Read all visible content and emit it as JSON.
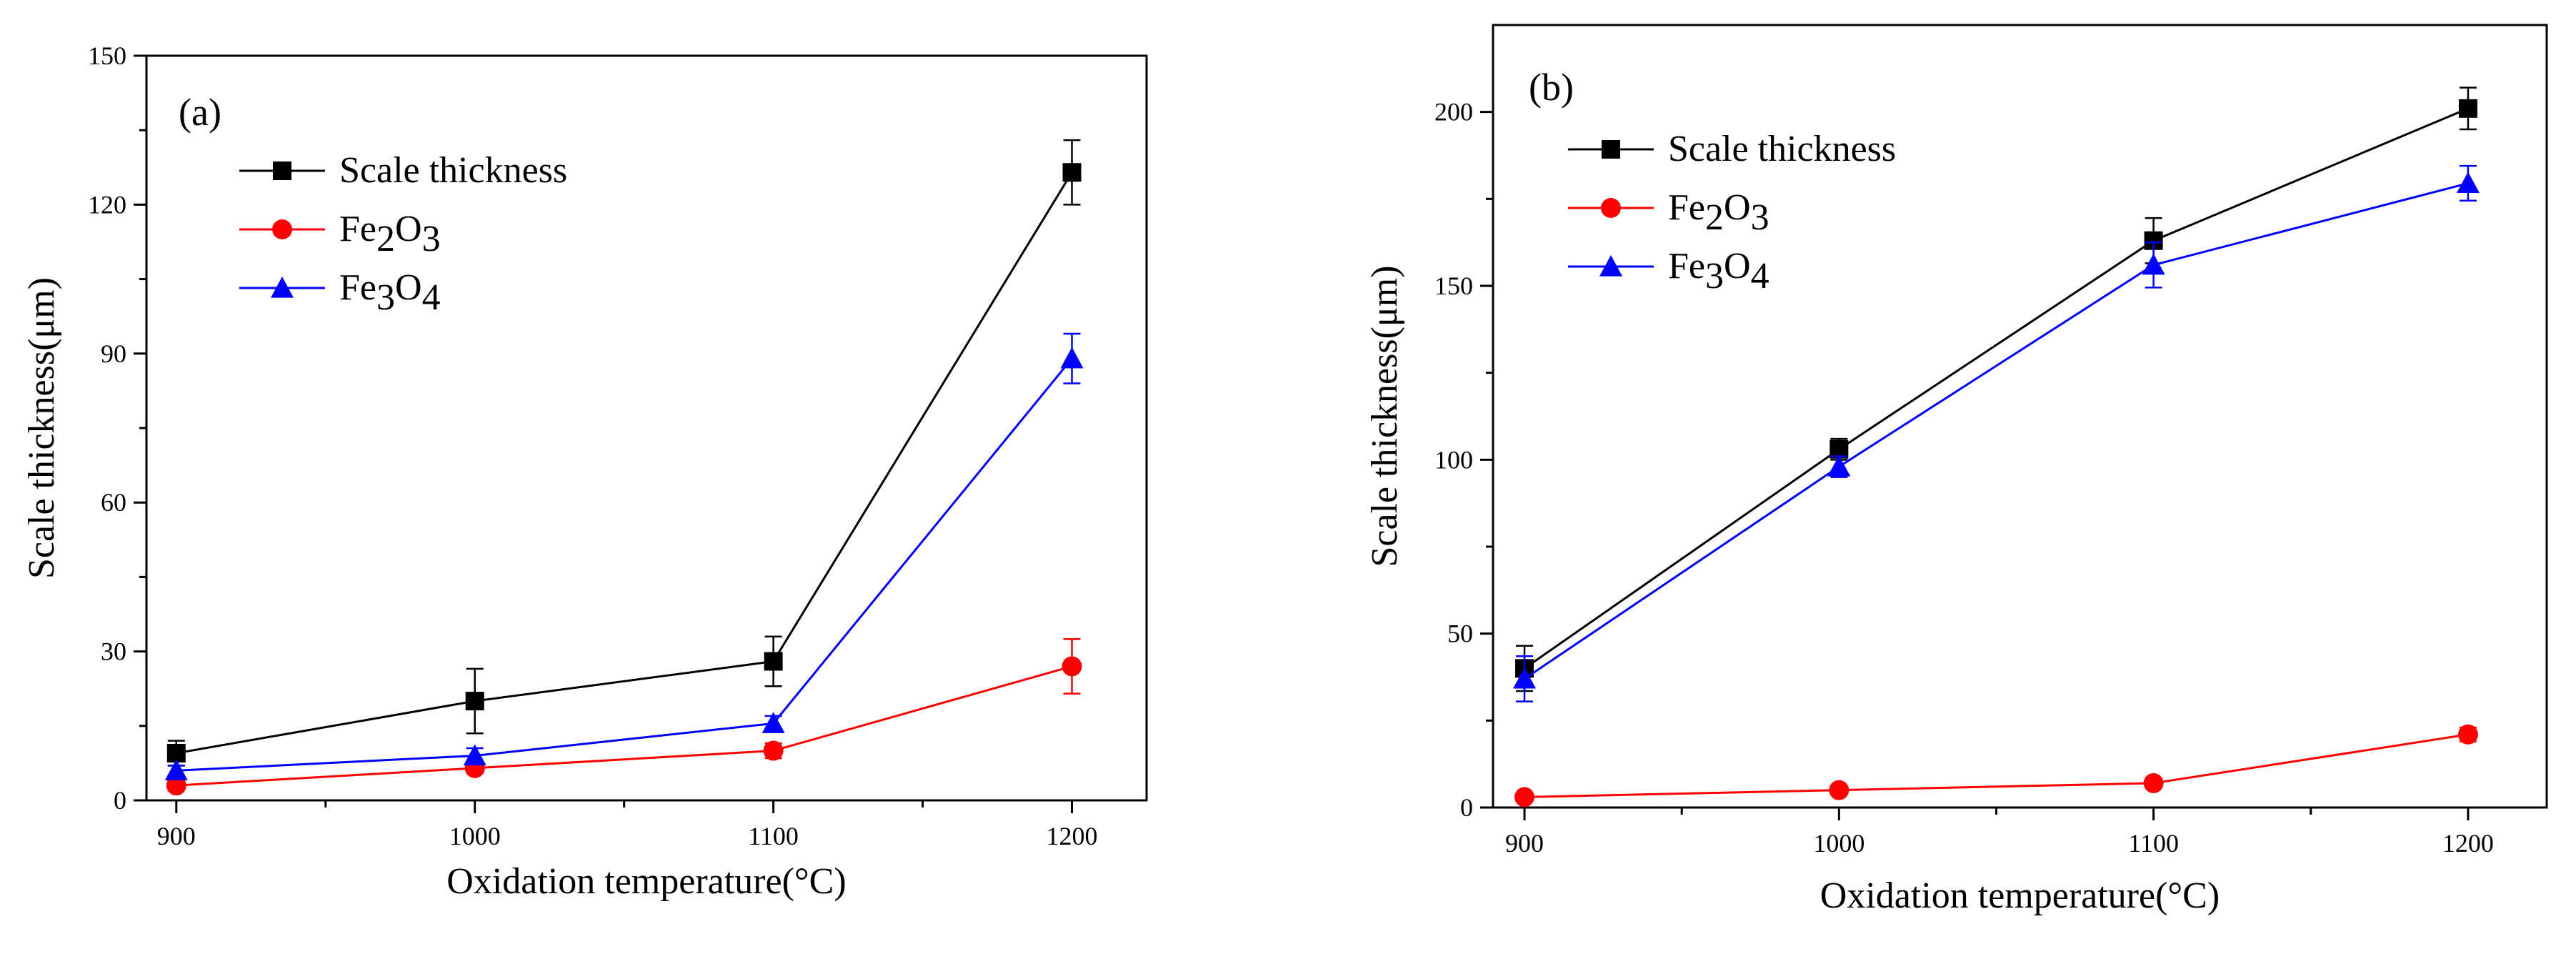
{
  "chart_data": [
    {
      "type": "line",
      "panel_label": "(a)",
      "title": "",
      "xlabel": "Oxidation temperature(°C)",
      "ylabel": "Scale thickness(μm)",
      "x": [
        900,
        1000,
        1100,
        1200
      ],
      "xticks": [
        "900",
        "1000",
        "1100",
        "1200"
      ],
      "yticks": [
        "0",
        "30",
        "60",
        "90",
        "120",
        "150"
      ],
      "xlim": [
        890,
        1225
      ],
      "ylim": [
        0,
        150
      ],
      "legend_position": "upper-left",
      "series": [
        {
          "name": "Scale thickness",
          "legend_base": "Scale thickness",
          "color": "#000000",
          "marker": "square",
          "values": [
            9.5,
            20,
            28,
            126.5
          ],
          "errors": [
            2.5,
            6.5,
            5,
            6.5
          ]
        },
        {
          "name": "Fe2O3",
          "legend_base": "Fe",
          "legend_sub1": "2",
          "legend_mid": "O",
          "legend_sub2": "3",
          "color": "#ff0000",
          "marker": "circle",
          "values": [
            3,
            6.5,
            10,
            27
          ],
          "errors": [
            1,
            1,
            1.5,
            5.5
          ]
        },
        {
          "name": "Fe3O4",
          "legend_base": "Fe",
          "legend_sub1": "3",
          "legend_mid": "O",
          "legend_sub2": "4",
          "color": "#0000ff",
          "marker": "triangle",
          "values": [
            6,
            9,
            15.5,
            89
          ],
          "errors": [
            1,
            1.5,
            1.5,
            5
          ]
        }
      ]
    },
    {
      "type": "line",
      "panel_label": "(b)",
      "title": "",
      "xlabel": "Oxidation temperature(°C)",
      "ylabel": "Scale thickness(μm)",
      "x": [
        900,
        1000,
        1100,
        1200
      ],
      "xticks": [
        "900",
        "1000",
        "1100",
        "1200"
      ],
      "yticks": [
        "0",
        "50",
        "100",
        "150",
        "200"
      ],
      "xlim": [
        890,
        1225
      ],
      "ylim": [
        0,
        225
      ],
      "legend_position": "upper-left",
      "series": [
        {
          "name": "Scale thickness",
          "legend_base": "Scale thickness",
          "color": "#000000",
          "marker": "square",
          "values": [
            40,
            103,
            163,
            201
          ],
          "errors": [
            6.5,
            3,
            6.5,
            6
          ]
        },
        {
          "name": "Fe2O3",
          "legend_base": "Fe",
          "legend_sub1": "2",
          "legend_mid": "O",
          "legend_sub2": "3",
          "color": "#ff0000",
          "marker": "circle",
          "values": [
            3,
            5,
            7,
            21
          ],
          "errors": [
            1,
            1,
            1,
            2
          ]
        },
        {
          "name": "Fe3O4",
          "legend_base": "Fe",
          "legend_sub1": "3",
          "legend_mid": "O",
          "legend_sub2": "4",
          "color": "#0000ff",
          "marker": "triangle",
          "values": [
            37,
            98,
            156,
            179.5
          ],
          "errors": [
            6.5,
            3,
            6.5,
            5
          ]
        }
      ]
    }
  ]
}
